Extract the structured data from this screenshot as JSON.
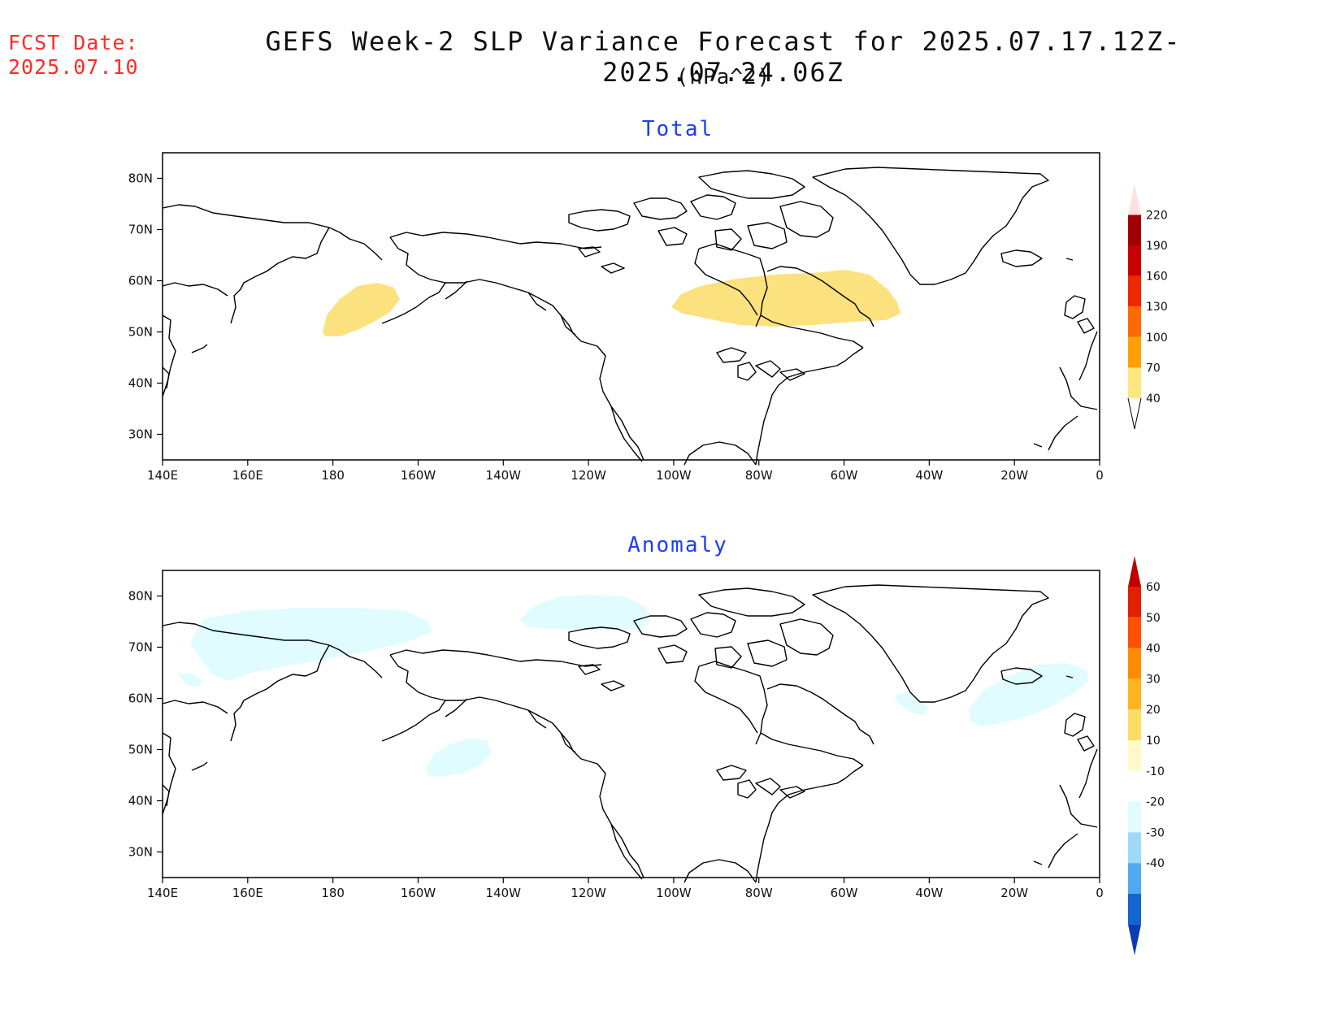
{
  "fcst_label": "FCST Date:",
  "fcst_date": "2025.07.10",
  "title": "GEFS Week-2 SLP Variance Forecast for 2025.07.17.12Z-2025.07.24.06Z",
  "units": "(hPa^2)",
  "map_axes": {
    "lon_ticks": [
      "140E",
      "160E",
      "180",
      "160W",
      "140W",
      "120W",
      "100W",
      "80W",
      "60W",
      "40W",
      "20W",
      "0"
    ],
    "lat_ticks": [
      "80N",
      "70N",
      "60N",
      "50N",
      "40N",
      "30N"
    ],
    "lon_range": [
      140,
      360
    ],
    "lat_range": [
      25,
      85
    ]
  },
  "panels": [
    {
      "title": "Total",
      "colorbar": {
        "levels": [
          "40",
          "70",
          "100",
          "130",
          "160",
          "190",
          "220"
        ],
        "colors": [
          "#ffe680",
          "#ffa000",
          "#ff6a00",
          "#f02800",
          "#c80000",
          "#a00000",
          "#f0a0a0",
          "#ffe0e0"
        ]
      },
      "shaded_regions": [
        {
          "level": "40-70",
          "color": "#fbe27e",
          "area": "North Pacific south of Aleutians"
        },
        {
          "level": "40-70",
          "color": "#fbe27e",
          "area": "Hudson Bay to Labrador Sea"
        }
      ]
    },
    {
      "title": "Anomaly",
      "colorbar": {
        "levels": [
          "60",
          "50",
          "40",
          "30",
          "20",
          "10",
          "-10",
          "-20",
          "-30",
          "-40"
        ],
        "colors": [
          "#c00000",
          "#e02000",
          "#ff5000",
          "#ff8c00",
          "#ffb420",
          "#ffdc64",
          "#fffac8",
          "#ffffff",
          "#e0fcff",
          "#a0d8f8",
          "#50aaf0",
          "#1464d2",
          "#0a3cb4"
        ]
      },
      "shaded_regions": [
        {
          "level": "-20 to -10",
          "color": "#e0fcff",
          "area": "Bering Strait / Chukchi Sea"
        },
        {
          "level": "-20 to -10",
          "color": "#e0fcff",
          "area": "Canadian Arctic Archipelago"
        },
        {
          "level": "-20 to -10",
          "color": "#e0fcff",
          "area": "Gulf of Alaska"
        },
        {
          "level": "-20 to -10",
          "color": "#e0fcff",
          "area": "North Atlantic near Iceland"
        },
        {
          "level": "-20 to -10",
          "color": "#e0fcff",
          "area": "Southern tip of Greenland"
        }
      ]
    }
  ]
}
